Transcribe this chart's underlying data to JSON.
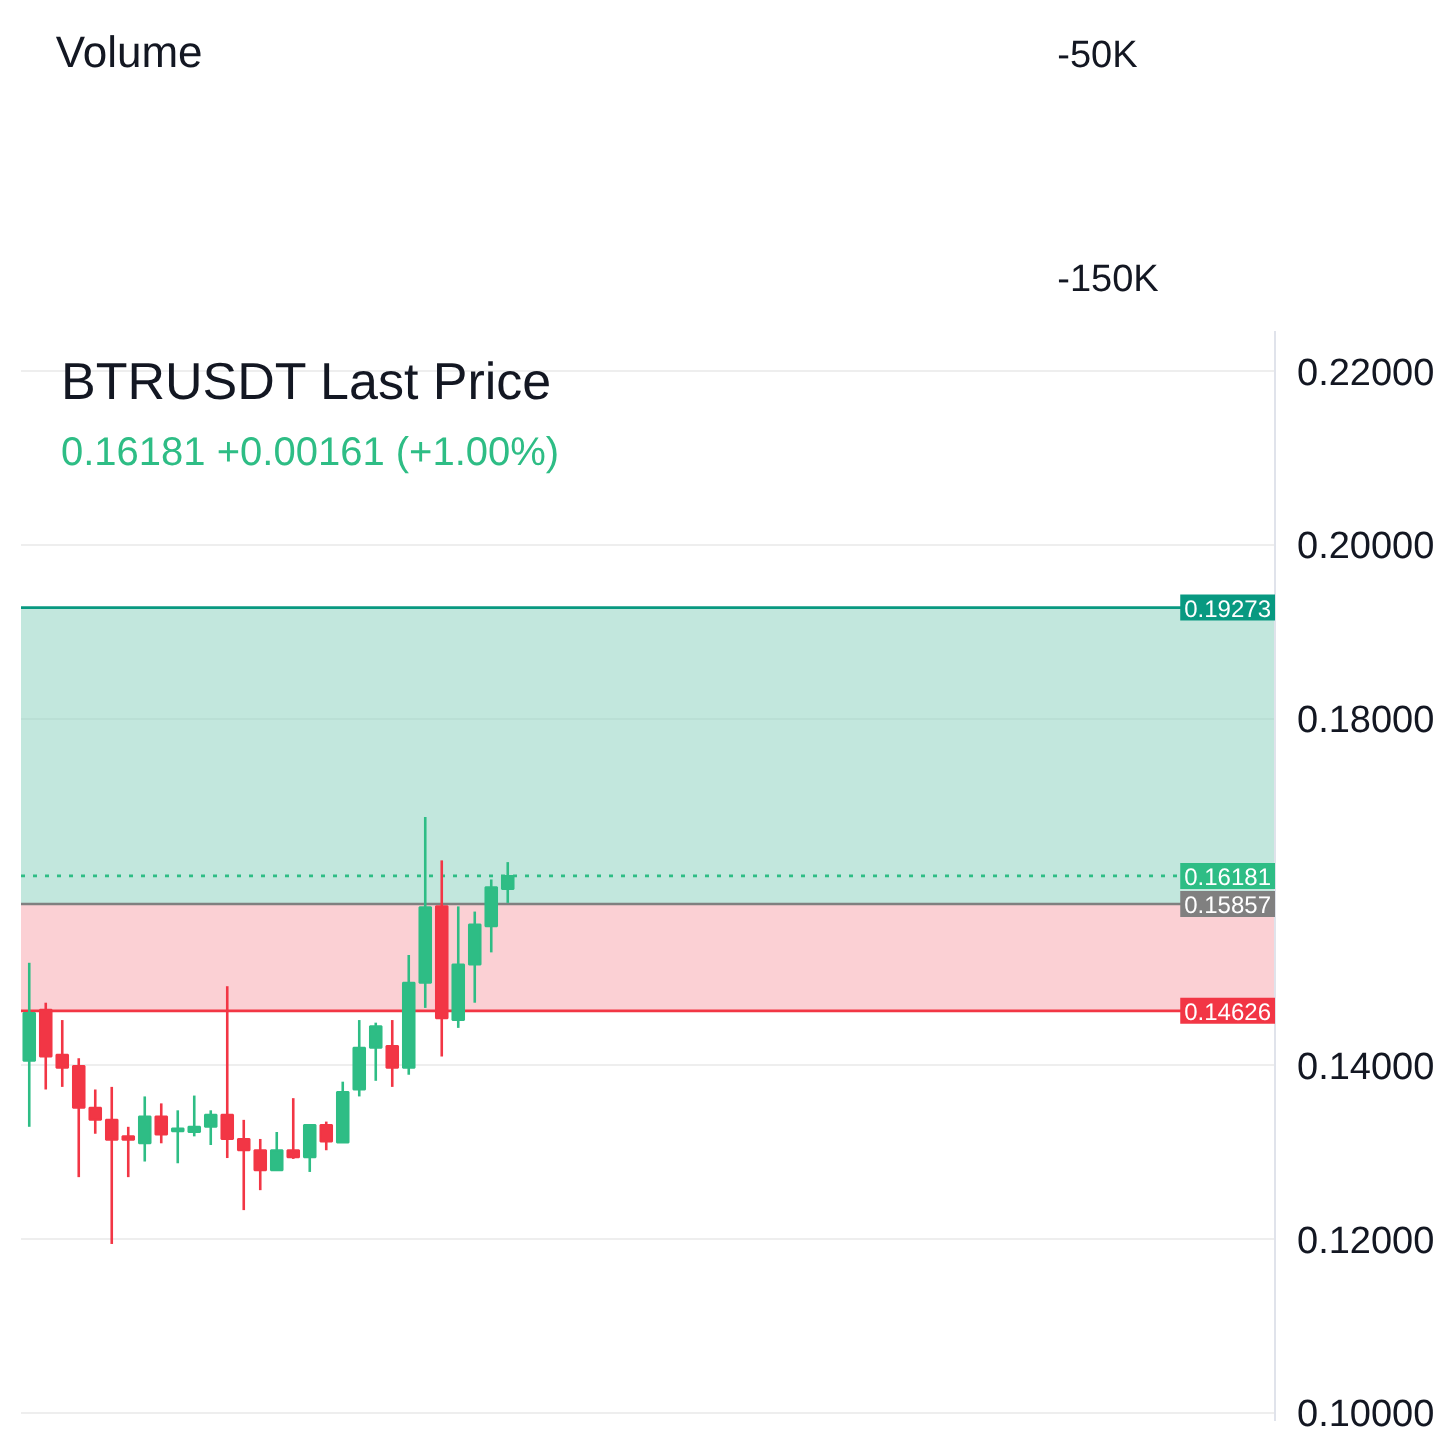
{
  "chart_data": {
    "type": "candlestick",
    "title": "BTRUSDT Last Price",
    "annotations": [
      "Volume",
      "-50K",
      "-150K"
    ],
    "subtitle": "0.16181  +0.00161 (+1.00%)",
    "categories": [
      null,
      null,
      null,
      null,
      null,
      null,
      null,
      null,
      null,
      null,
      null,
      null,
      null,
      null,
      null,
      null,
      null,
      null,
      null,
      null,
      null,
      null,
      null,
      null,
      null,
      null,
      null,
      null,
      null,
      null,
      null,
      null,
      null,
      null,
      null,
      null,
      null,
      null,
      null,
      null,
      null,
      null,
      null,
      null,
      null,
      null,
      null,
      null,
      null,
      null,
      null,
      null,
      null,
      null,
      null,
      null,
      null,
      null,
      null,
      null,
      null,
      null,
      null,
      null,
      null,
      null,
      null,
      null,
      null,
      null,
      null,
      null,
      null,
      null,
      null,
      null
    ],
    "ohlc": [
      [
        0.1405,
        0.1518,
        0.1329,
        0.146
      ],
      [
        0.1464,
        0.1472,
        0.1372,
        0.141
      ],
      [
        0.1412,
        0.1452,
        0.1375,
        0.1397
      ],
      [
        0.1399,
        0.1408,
        0.1271,
        0.1351
      ],
      [
        0.1351,
        0.1372,
        0.1321,
        0.1337
      ],
      [
        0.1337,
        0.1375,
        0.1194,
        0.1314
      ],
      [
        0.1318,
        0.1329,
        0.1271,
        0.1314
      ],
      [
        0.131,
        0.1364,
        0.1289,
        0.1341
      ],
      [
        0.1341,
        0.1356,
        0.131,
        0.132
      ],
      [
        0.1324,
        0.1348,
        0.1287,
        0.1327
      ],
      [
        0.1323,
        0.1365,
        0.1318,
        0.1329
      ],
      [
        0.1329,
        0.1348,
        0.1308,
        0.1343
      ],
      [
        0.1343,
        0.1491,
        0.1293,
        0.1315
      ],
      [
        0.1315,
        0.1337,
        0.1233,
        0.1302
      ],
      [
        0.1302,
        0.1315,
        0.1256,
        0.1279
      ],
      [
        0.1279,
        0.1323,
        0.1279,
        0.1302
      ],
      [
        0.1302,
        0.1362,
        0.1292,
        0.1294
      ],
      [
        0.1294,
        0.1331,
        0.1277,
        0.1331
      ],
      [
        0.1331,
        0.1335,
        0.1302,
        0.1312
      ],
      [
        0.1311,
        0.1381,
        0.1311,
        0.1369
      ],
      [
        0.1372,
        0.1452,
        0.1364,
        0.142
      ],
      [
        0.142,
        0.1449,
        0.1382,
        0.1445
      ],
      [
        0.1422,
        0.1452,
        0.1375,
        0.1397
      ],
      [
        0.1397,
        0.1527,
        0.1389,
        0.1495
      ],
      [
        0.1495,
        0.1686,
        0.1466,
        0.1582
      ],
      [
        0.1583,
        0.1636,
        0.141,
        0.1454
      ],
      [
        0.1452,
        0.1583,
        0.1443,
        0.1516
      ],
      [
        0.1516,
        0.1577,
        0.1472,
        0.1562
      ],
      [
        0.156,
        0.1614,
        0.153,
        0.1605
      ],
      [
        0.1603,
        0.1634,
        0.1587,
        0.16181
      ],
      null,
      null,
      null,
      null,
      null,
      null,
      null,
      null,
      null,
      null,
      null,
      null,
      null,
      null,
      null,
      null,
      null,
      null,
      null,
      null,
      null,
      null,
      null,
      null,
      null,
      null,
      null,
      null,
      null,
      null,
      null,
      null,
      null,
      null,
      null,
      null,
      null,
      null,
      null,
      null,
      null,
      null,
      null,
      null,
      null,
      null
    ],
    "colors": [
      "#2ebd85",
      "#f23645",
      "#f23645",
      "#f23645",
      "#f23645",
      "#f23645",
      "#f23645",
      "#2ebd85",
      "#f23645",
      "#2ebd85",
      "#2ebd85",
      "#2ebd85",
      "#f23645",
      "#f23645",
      "#f23645",
      "#2ebd85",
      "#f23645",
      "#2ebd85",
      "#f23645",
      "#2ebd85",
      "#2ebd85",
      "#2ebd85",
      "#f23645",
      "#2ebd85",
      "#2ebd85",
      "#f23645",
      "#2ebd85",
      "#2ebd85",
      "#2ebd85",
      "#2ebd85",
      null,
      null,
      null,
      null,
      null,
      null,
      null,
      null,
      null,
      null,
      null,
      null,
      null,
      null,
      null,
      null,
      null,
      null,
      null,
      null,
      null,
      null,
      null,
      null,
      null,
      null,
      null,
      null,
      null,
      null,
      null,
      null,
      null,
      null,
      null,
      null,
      null,
      null,
      null,
      null,
      null,
      null,
      null,
      null,
      null,
      null
    ],
    "ylim": [
      0.099,
      0.2246
    ],
    "yticks": [
      {
        "value": 0.1,
        "label": "0.10000"
      },
      {
        "value": 0.12,
        "label": "0.12000"
      },
      {
        "value": 0.14,
        "label": "0.14000"
      },
      {
        "value": 0.18,
        "label": "0.18000"
      },
      {
        "value": 0.2,
        "label": "0.20000"
      },
      {
        "value": 0.22,
        "label": "0.22000"
      }
    ],
    "bands": [
      {
        "axis": "y",
        "from": 0.15857,
        "to": 0.19273,
        "color": "#8fd3c1"
      },
      {
        "axis": "y",
        "from": 0.14626,
        "to": 0.15857,
        "color": "#f7a9b1"
      }
    ],
    "ref_lines": [
      {
        "axis": "y",
        "value": 0.19273,
        "label": "0.19273",
        "color": "#089981",
        "line_style": "solid"
      },
      {
        "axis": "y",
        "value": 0.16181,
        "label": "0.16181",
        "color": "#2ebd85",
        "line_style": "dotted"
      },
      {
        "axis": "y",
        "value": 0.15857,
        "label": "0.15857",
        "color": "#808080",
        "line_style": "solid"
      },
      {
        "axis": "y",
        "value": 0.14626,
        "label": "0.14626",
        "color": "#f23645",
        "line_style": "solid"
      }
    ],
    "tick_labels": "y",
    "grid": "y"
  }
}
